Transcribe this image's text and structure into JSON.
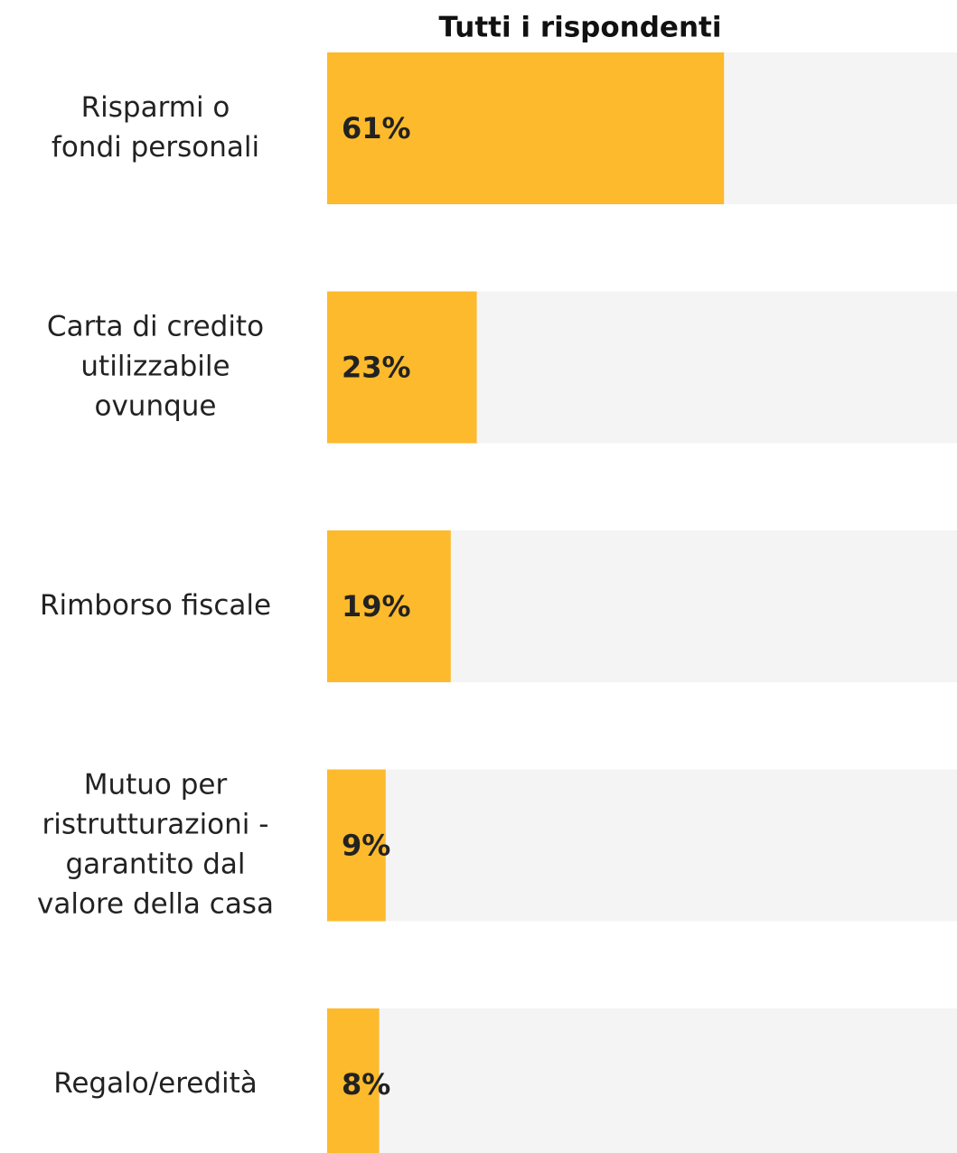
{
  "chart_data": {
    "type": "bar",
    "orientation": "horizontal",
    "title": "Tutti i rispondenti",
    "categories": [
      "Risparmi o\nfondi personali",
      "Carta di credito\nutilizzabile\novunque",
      "Rimborso fiscale",
      "Mutuo per\nristrutturazioni -\ngarantito dal\nvalore della casa",
      "Regalo/eredità"
    ],
    "values": [
      61,
      23,
      19,
      9,
      8
    ],
    "value_labels": [
      "61%",
      "23%",
      "19%",
      "9%",
      "8%"
    ],
    "color": "#fdba2c",
    "track_color": "#f4f4f4",
    "xlim": [
      0,
      100
    ]
  }
}
